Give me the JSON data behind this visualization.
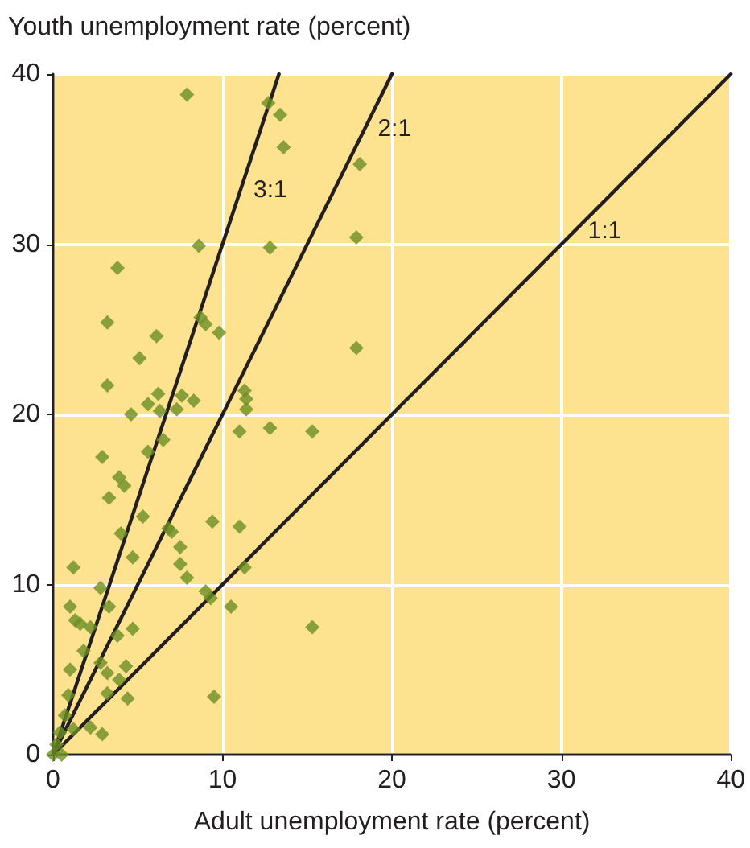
{
  "chart_data": {
    "type": "scatter",
    "ylabel": "Youth unemployment rate (percent)",
    "xlabel": "Adult unemployment rate (percent)",
    "xlim": [
      0,
      40
    ],
    "xticks": [
      0,
      10,
      20,
      30,
      40
    ],
    "ylim": [
      0,
      40
    ],
    "yticks": [
      0,
      10,
      20,
      30,
      40
    ],
    "grid": true,
    "marker": "diamond",
    "series": [
      {
        "color": "#6b8e23",
        "x": [
          7.9,
          8.6,
          3.8,
          3.2,
          6.1,
          8.7,
          9.0,
          9.8,
          5.1,
          3.2,
          6.2,
          5.6,
          4.6,
          6.3,
          7.3,
          7.6,
          8.3,
          12.7,
          13.4,
          13.6,
          18.1,
          17.9,
          12.8,
          17.9,
          11.3,
          11.4,
          11.4,
          11.0,
          12.8,
          15.3,
          2.9,
          5.6,
          6.5,
          3.9,
          4.2,
          3.3,
          5.3,
          4.0,
          4.7,
          1.2,
          6.8,
          7.0,
          7.5,
          7.5,
          7.9,
          9.4,
          11.0,
          11.3,
          10.5,
          15.3,
          9.5,
          9.3,
          9.0,
          2.8,
          3.3,
          1.0,
          1.3,
          1.6,
          2.2,
          3.8,
          4.7,
          1.8,
          1.0,
          2.8,
          3.2,
          3.9,
          4.3,
          3.2,
          4.4,
          0.9,
          0.7,
          1.2,
          2.2,
          2.9,
          0.4,
          0.2,
          0.0,
          0.5
        ],
        "values": [
          38.8,
          29.9,
          28.6,
          25.4,
          24.6,
          25.7,
          25.3,
          24.8,
          23.3,
          21.7,
          21.2,
          20.6,
          20.0,
          20.2,
          20.3,
          21.1,
          20.8,
          38.3,
          37.6,
          35.7,
          34.7,
          30.4,
          29.8,
          23.9,
          21.4,
          20.9,
          20.3,
          19.0,
          19.2,
          19.0,
          17.5,
          17.8,
          18.5,
          16.3,
          15.8,
          15.1,
          14.0,
          13.0,
          11.6,
          11.0,
          13.3,
          13.1,
          12.2,
          11.2,
          10.4,
          13.7,
          13.4,
          11.0,
          8.7,
          7.5,
          3.4,
          9.2,
          9.6,
          9.8,
          8.7,
          8.7,
          7.9,
          7.7,
          7.5,
          7.0,
          7.4,
          6.1,
          5.0,
          5.4,
          4.8,
          4.4,
          5.2,
          3.6,
          3.3,
          3.5,
          2.3,
          1.5,
          1.6,
          1.2,
          1.3,
          0.6,
          0.0,
          0.0
        ]
      },
      {
        "type": "line",
        "marker": "none",
        "name": "1:1",
        "color": "#231f20",
        "x": [
          0,
          40
        ],
        "values": [
          0,
          40
        ]
      },
      {
        "type": "line",
        "marker": "none",
        "name": "2:1",
        "color": "#231f20",
        "x": [
          0,
          20
        ],
        "values": [
          0,
          40
        ]
      },
      {
        "type": "line",
        "marker": "none",
        "name": "3:1",
        "color": "#231f20",
        "x": [
          0,
          13.33
        ],
        "values": [
          0,
          40
        ]
      }
    ]
  }
}
